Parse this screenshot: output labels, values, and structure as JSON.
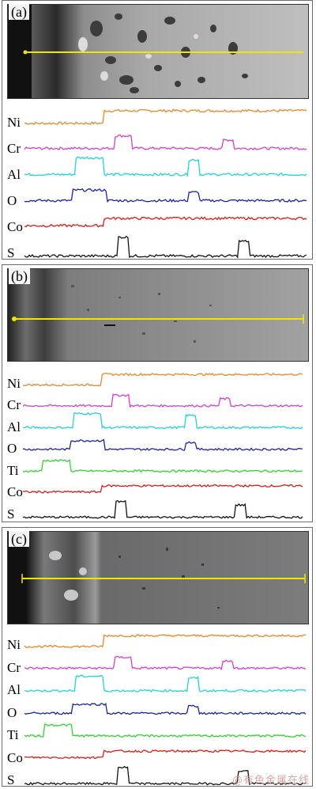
{
  "panels": [
    {
      "label": "(a)",
      "elements": [
        {
          "name": "Ni",
          "color": "#e8882a"
        },
        {
          "name": "Cr",
          "color": "#d63cd6"
        },
        {
          "name": "Al",
          "color": "#22d3d3"
        },
        {
          "name": "O",
          "color": "#1c22a6"
        },
        {
          "name": "Co",
          "color": "#e01818"
        },
        {
          "name": "S",
          "color": "#111111"
        }
      ]
    },
    {
      "label": "(b)",
      "elements": [
        {
          "name": "Ni",
          "color": "#e8882a"
        },
        {
          "name": "Cr",
          "color": "#d63cd6"
        },
        {
          "name": "Al",
          "color": "#22d3d3"
        },
        {
          "name": "O",
          "color": "#1c22a6"
        },
        {
          "name": "Ti",
          "color": "#2fd42f"
        },
        {
          "name": "Co",
          "color": "#e01818"
        },
        {
          "name": "S",
          "color": "#111111"
        }
      ]
    },
    {
      "label": "(c)",
      "elements": [
        {
          "name": "Ni",
          "color": "#e8882a"
        },
        {
          "name": "Cr",
          "color": "#d63cd6"
        },
        {
          "name": "Al",
          "color": "#22d3d3"
        },
        {
          "name": "O",
          "color": "#1c22a6"
        },
        {
          "name": "Ti",
          "color": "#2fd42f"
        },
        {
          "name": "Co",
          "color": "#e01818"
        },
        {
          "name": "S",
          "color": "#111111"
        }
      ]
    }
  ],
  "scan_line_color": "#f2e600",
  "watermark": "@有色金属在线"
}
